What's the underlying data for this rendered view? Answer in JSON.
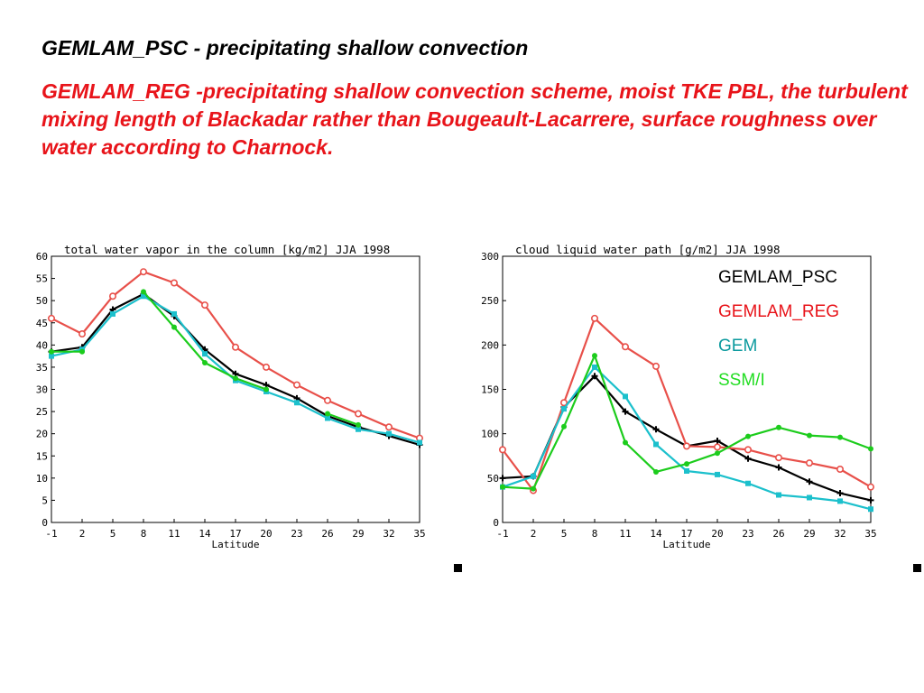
{
  "heading": "GEMLAM_PSC - precipitating shallow convection",
  "description": "GEMLAM_REG -precipitating shallow convection scheme,  moist TKE PBL, the turbulent mixing length of Blackadar rather than Bougeault-Lacarrere, surface roughness over water according to Charnock.",
  "colors": {
    "heading": "#000000",
    "description": "#e8141a",
    "psc": "#000000",
    "reg": "#e8504a",
    "gem": "#1cc0cc",
    "ssmi": "#1ccc1c",
    "legend_gem_text": "#0b9a9e",
    "legend_ssmi_text": "#22dd22",
    "legend_reg_text": "#e8141a"
  },
  "legend": [
    {
      "label": "GEMLAM_PSC",
      "color_key": "psc"
    },
    {
      "label": "GEMLAM_REG",
      "color_key": "reg"
    },
    {
      "label": "GEM",
      "color_key": "gem"
    },
    {
      "label": "SSM/I",
      "color_key": "ssmi"
    }
  ],
  "chart_data": [
    {
      "type": "line",
      "title": "total water vapor in the column [kg/m2] JJA 1998",
      "xlabel": "Latitude",
      "ylabel": "",
      "x": [
        -1,
        2,
        5,
        8,
        11,
        14,
        17,
        20,
        23,
        26,
        29,
        32,
        35
      ],
      "xticks": [
        "-1",
        "2",
        "5",
        "8",
        "11",
        "14",
        "17",
        "20",
        "23",
        "26",
        "29",
        "32",
        "35"
      ],
      "ylim": [
        0,
        60
      ],
      "yticks": [
        0,
        5,
        10,
        15,
        20,
        25,
        30,
        35,
        40,
        45,
        50,
        55,
        60
      ],
      "grid": false,
      "series": [
        {
          "name": "GEMLAM_PSC",
          "color_key": "psc",
          "marker": "plus",
          "values": [
            38.5,
            39.5,
            48,
            51.5,
            46.5,
            39,
            33.5,
            31,
            28,
            24,
            21.5,
            19.5,
            17.5
          ]
        },
        {
          "name": "GEMLAM_REG",
          "color_key": "reg",
          "marker": "circle",
          "values": [
            46,
            42.5,
            51,
            56.5,
            54,
            49,
            39.5,
            35,
            31,
            27.5,
            24.5,
            21.5,
            19
          ]
        },
        {
          "name": "GEM",
          "color_key": "gem",
          "marker": "square",
          "values": [
            37.5,
            39,
            47,
            51,
            47,
            38,
            32,
            29.5,
            27,
            23.5,
            21,
            20,
            18
          ]
        },
        {
          "name": "SSM/I",
          "color_key": "ssmi",
          "marker": "dot",
          "values": [
            38.5,
            38.5,
            null,
            52,
            44,
            36,
            32.5,
            30,
            null,
            24.5,
            22,
            null,
            null
          ]
        }
      ]
    },
    {
      "type": "line",
      "title": "cloud liquid water path [g/m2] JJA 1998",
      "xlabel": "Latitude",
      "ylabel": "",
      "x": [
        -1,
        2,
        5,
        8,
        11,
        14,
        17,
        20,
        23,
        26,
        29,
        32,
        35
      ],
      "xticks": [
        "-1",
        "2",
        "5",
        "8",
        "11",
        "14",
        "17",
        "20",
        "23",
        "26",
        "29",
        "32",
        "35"
      ],
      "ylim": [
        0,
        300
      ],
      "yticks": [
        0,
        50,
        100,
        150,
        200,
        250,
        300
      ],
      "grid": false,
      "series": [
        {
          "name": "GEMLAM_PSC",
          "color_key": "psc",
          "marker": "plus",
          "values": [
            50,
            52,
            130,
            165,
            125,
            105,
            86,
            92,
            72,
            62,
            46,
            33,
            25
          ]
        },
        {
          "name": "GEMLAM_REG",
          "color_key": "reg",
          "marker": "circle",
          "values": [
            82,
            36,
            135,
            230,
            198,
            176,
            86,
            85,
            82,
            73,
            67,
            60,
            40
          ]
        },
        {
          "name": "GEM",
          "color_key": "gem",
          "marker": "square",
          "values": [
            40,
            52,
            128,
            175,
            142,
            88,
            58,
            54,
            44,
            31,
            28,
            24,
            15
          ]
        },
        {
          "name": "SSM/I",
          "color_key": "ssmi",
          "marker": "dot",
          "values": [
            40,
            38,
            108,
            188,
            90,
            57,
            66,
            78,
            97,
            107,
            98,
            96,
            83
          ]
        }
      ]
    }
  ]
}
